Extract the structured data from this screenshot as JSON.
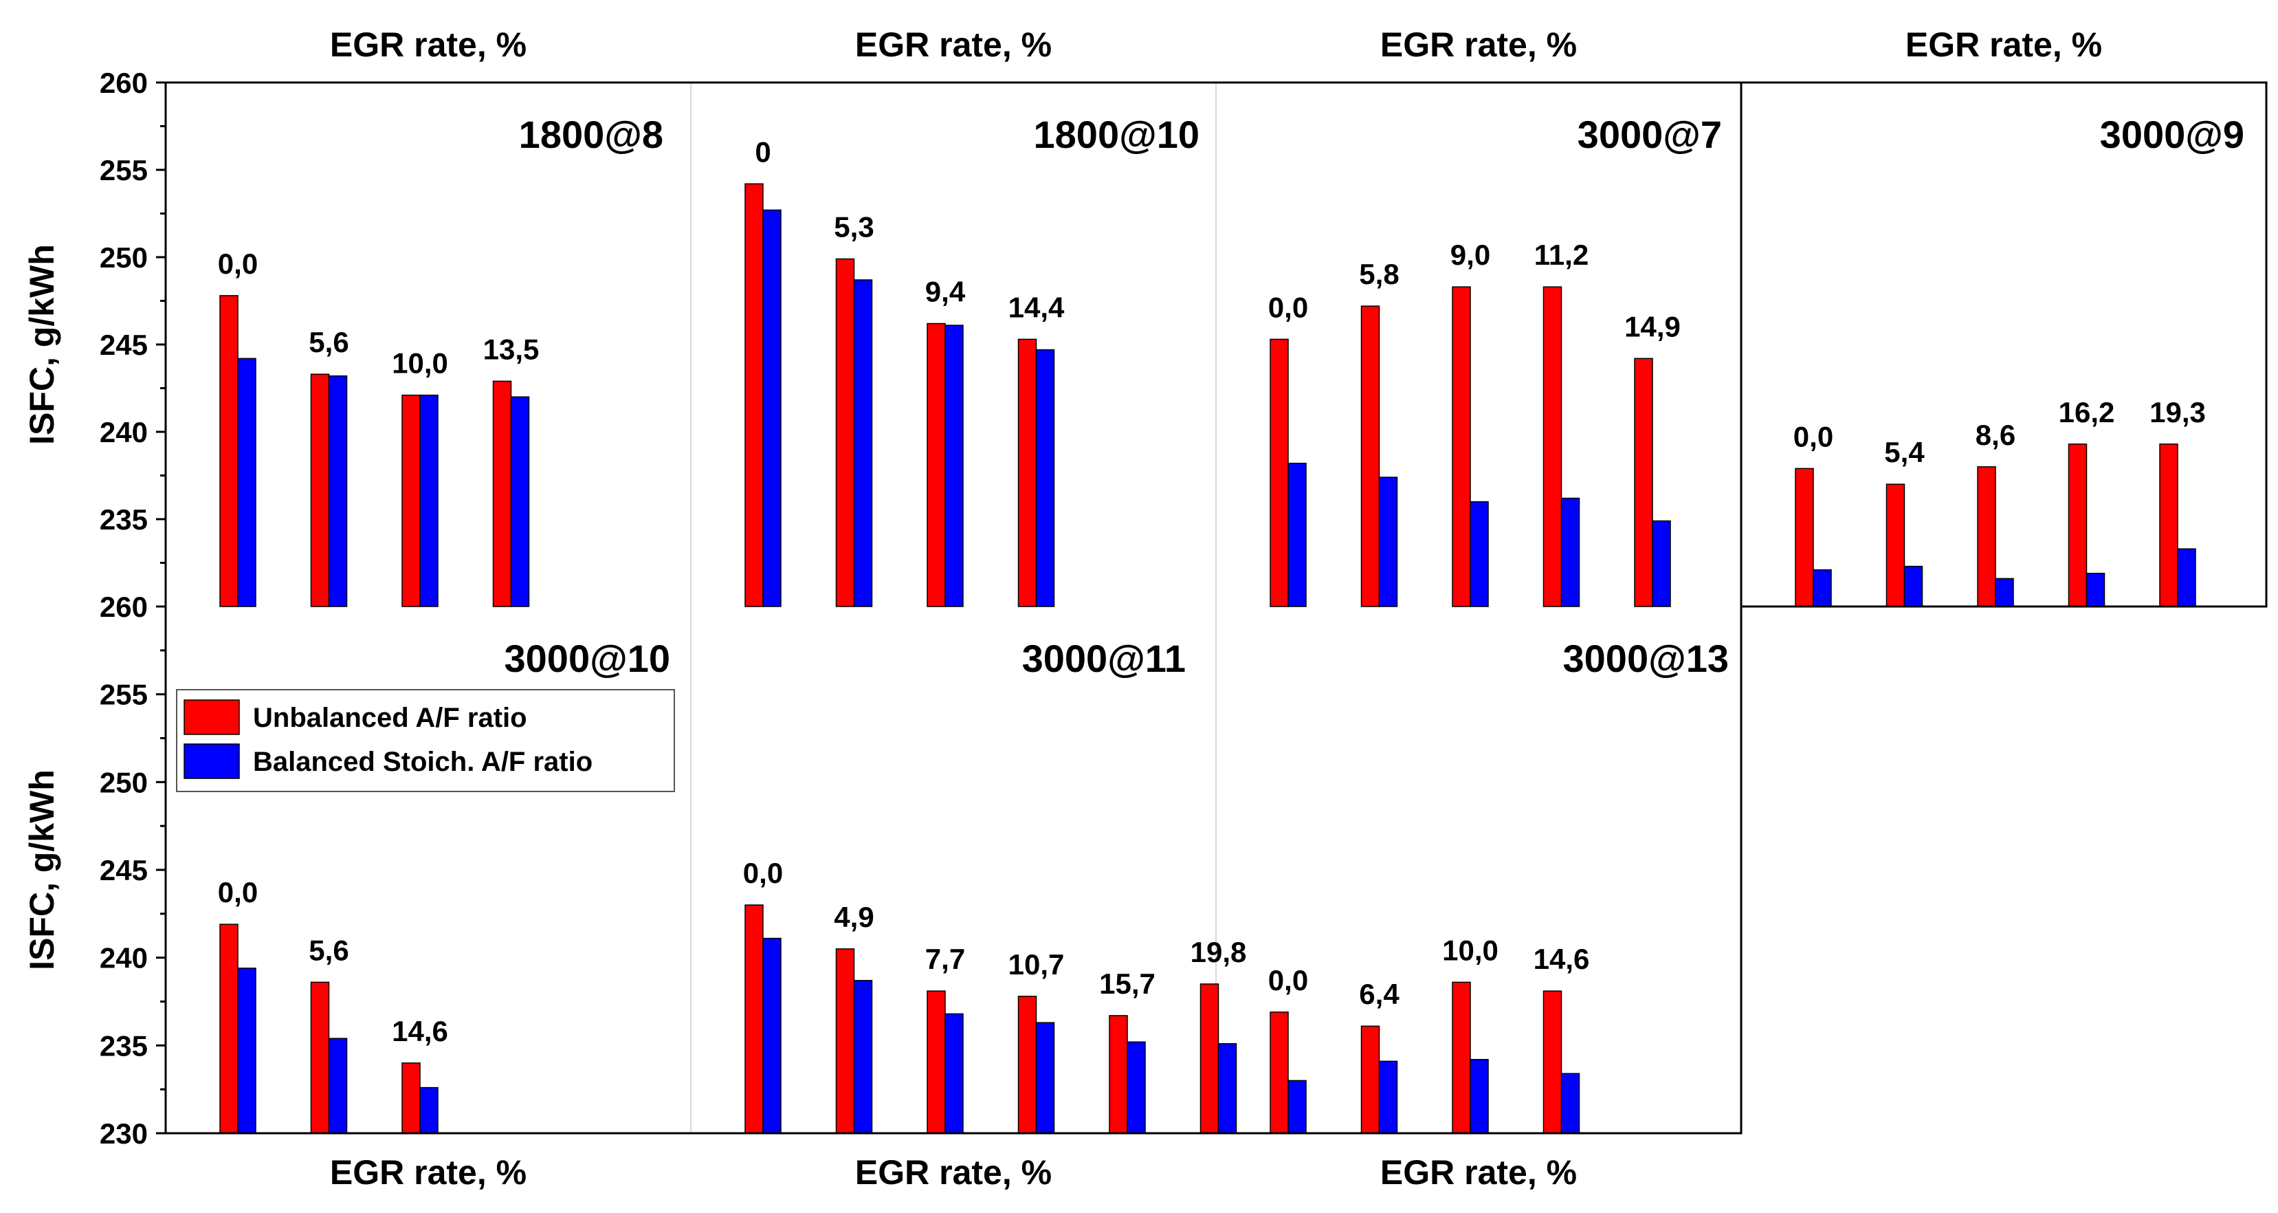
{
  "figure": {
    "x_title": "EGR rate, %",
    "y_title": "ISFC, g/kWh"
  },
  "legend": {
    "items": [
      {
        "label": "Unbalanced A/F ratio",
        "color": "#ff0000"
      },
      {
        "label": "Balanced Stoich. A/F ratio",
        "color": "#0000ff"
      }
    ]
  },
  "chart_data": [
    {
      "type": "bar",
      "title": "1800@8",
      "xlabel": "EGR rate, %",
      "ylabel": "ISFC, g/kWh",
      "ylim": [
        230,
        260
      ],
      "yticks": [
        "260",
        "255",
        "250",
        "245",
        "240",
        "235"
      ],
      "categories": [
        "0,0",
        "5,6",
        "10,0",
        "13,5"
      ],
      "series": [
        {
          "name": "Unbalanced A/F ratio",
          "color": "#ff0000",
          "values": [
            247.8,
            243.3,
            242.1,
            242.9
          ]
        },
        {
          "name": "Balanced Stoich. A/F ratio",
          "color": "#0000ff",
          "values": [
            244.2,
            243.2,
            242.1,
            242.0
          ]
        }
      ]
    },
    {
      "type": "bar",
      "title": "1800@10",
      "xlabel": "EGR rate, %",
      "ylabel": "ISFC, g/kWh",
      "ylim": [
        230,
        260
      ],
      "categories": [
        "0",
        "5,3",
        "9,4",
        "14,4"
      ],
      "series": [
        {
          "name": "Unbalanced A/F ratio",
          "color": "#ff0000",
          "values": [
            254.2,
            249.9,
            246.2,
            245.3
          ]
        },
        {
          "name": "Balanced Stoich. A/F ratio",
          "color": "#0000ff",
          "values": [
            252.7,
            248.7,
            246.1,
            244.7
          ]
        }
      ]
    },
    {
      "type": "bar",
      "title": "3000@7",
      "xlabel": "EGR rate, %",
      "ylabel": "ISFC, g/kWh",
      "ylim": [
        230,
        260
      ],
      "categories": [
        "0,0",
        "5,8",
        "9,0",
        "11,2",
        "14,9"
      ],
      "series": [
        {
          "name": "Unbalanced A/F ratio",
          "color": "#ff0000",
          "values": [
            245.3,
            247.2,
            248.3,
            248.3,
            244.2
          ]
        },
        {
          "name": "Balanced Stoich. A/F ratio",
          "color": "#0000ff",
          "values": [
            238.2,
            237.4,
            236.0,
            236.2,
            234.9
          ]
        }
      ]
    },
    {
      "type": "bar",
      "title": "3000@9",
      "xlabel": "EGR rate, %",
      "ylabel": "ISFC, g/kWh",
      "ylim": [
        230,
        260
      ],
      "categories": [
        "0,0",
        "5,4",
        "8,6",
        "16,2",
        "19,3"
      ],
      "series": [
        {
          "name": "Unbalanced A/F ratio",
          "color": "#ff0000",
          "values": [
            237.9,
            237.0,
            238.0,
            239.3,
            239.3
          ]
        },
        {
          "name": "Balanced Stoich. A/F ratio",
          "color": "#0000ff",
          "values": [
            232.1,
            232.3,
            231.6,
            231.9,
            233.3
          ]
        }
      ]
    },
    {
      "type": "bar",
      "title": "3000@10",
      "xlabel": "EGR rate, %",
      "ylabel": "ISFC, g/kWh",
      "ylim": [
        230,
        260
      ],
      "yticks": [
        "260",
        "255",
        "250",
        "245",
        "240",
        "235",
        "230"
      ],
      "categories": [
        "0,0",
        "5,6",
        "14,6"
      ],
      "series": [
        {
          "name": "Unbalanced A/F ratio",
          "color": "#ff0000",
          "values": [
            241.9,
            238.6,
            234.0
          ]
        },
        {
          "name": "Balanced Stoich. A/F ratio",
          "color": "#0000ff",
          "values": [
            239.4,
            235.4,
            232.6
          ]
        }
      ]
    },
    {
      "type": "bar",
      "title": "3000@11",
      "xlabel": "EGR rate, %",
      "ylabel": "ISFC, g/kWh",
      "ylim": [
        230,
        260
      ],
      "categories": [
        "0,0",
        "4,9",
        "7,7",
        "10,7",
        "15,7",
        "19,8"
      ],
      "series": [
        {
          "name": "Unbalanced A/F ratio",
          "color": "#ff0000",
          "values": [
            243.0,
            240.5,
            238.1,
            237.8,
            236.7,
            238.5
          ]
        },
        {
          "name": "Balanced Stoich. A/F ratio",
          "color": "#0000ff",
          "values": [
            241.1,
            238.7,
            236.8,
            236.3,
            235.2,
            235.1
          ]
        }
      ]
    },
    {
      "type": "bar",
      "title": "3000@13",
      "xlabel": "EGR rate, %",
      "ylabel": "ISFC, g/kWh",
      "ylim": [
        230,
        260
      ],
      "categories": [
        "0,0",
        "6,4",
        "10,0",
        "14,6"
      ],
      "series": [
        {
          "name": "Unbalanced A/F ratio",
          "color": "#ff0000",
          "values": [
            236.9,
            236.1,
            238.6,
            238.1
          ]
        },
        {
          "name": "Balanced Stoich. A/F ratio",
          "color": "#0000ff",
          "values": [
            233.0,
            234.1,
            234.2,
            233.4
          ]
        }
      ]
    }
  ]
}
